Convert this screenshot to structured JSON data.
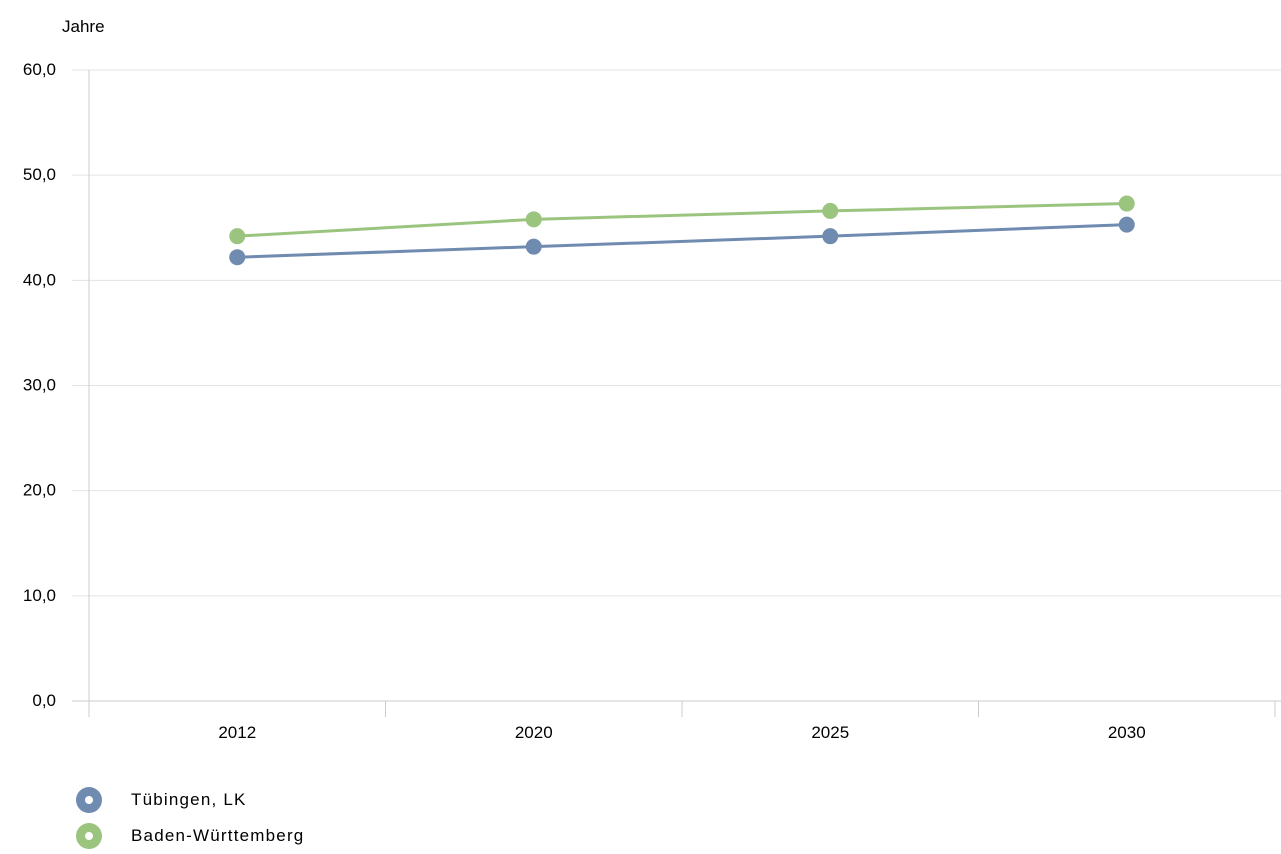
{
  "chart_data": {
    "type": "line",
    "ylabel": "Jahre",
    "categories": [
      "2012",
      "2020",
      "2025",
      "2030"
    ],
    "y_ticks": [
      "0,0",
      "10,0",
      "20,0",
      "30,0",
      "40,0",
      "50,0",
      "60,0"
    ],
    "ylim": [
      0,
      60
    ],
    "grid": true,
    "legend_position": "bottom-left",
    "series": [
      {
        "name": "Tübingen, LK",
        "color": "#6f8bb0",
        "values": [
          42.2,
          43.2,
          44.2,
          45.3
        ]
      },
      {
        "name": "Baden-Württemberg",
        "color": "#9bc47f",
        "values": [
          44.2,
          45.8,
          46.6,
          47.3
        ]
      }
    ]
  }
}
